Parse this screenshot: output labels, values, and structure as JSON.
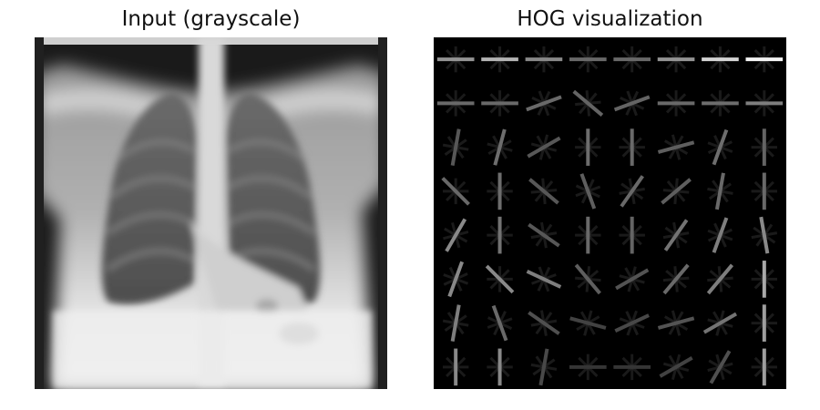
{
  "figure": {
    "left_title": "Input (grayscale)",
    "right_title": "HOG visualization"
  },
  "hog": {
    "grid": [
      8,
      8
    ],
    "cells": [
      [
        [
          0,
          0.5
        ],
        [
          0,
          0.65
        ],
        [
          0,
          0.45
        ],
        [
          0,
          0.3
        ],
        [
          0,
          0.3
        ],
        [
          0,
          0.5
        ],
        [
          0,
          0.8
        ],
        [
          0,
          0.95
        ]
      ],
      [
        [
          0,
          0.3
        ],
        [
          0,
          0.3
        ],
        [
          20,
          0.3
        ],
        [
          -40,
          0.28
        ],
        [
          20,
          0.28
        ],
        [
          0,
          0.3
        ],
        [
          0,
          0.32
        ],
        [
          0,
          0.4
        ]
      ],
      [
        [
          80,
          0.22
        ],
        [
          75,
          0.32
        ],
        [
          30,
          0.22
        ],
        [
          90,
          0.32
        ],
        [
          90,
          0.3
        ],
        [
          15,
          0.25
        ],
        [
          70,
          0.32
        ],
        [
          90,
          0.28
        ]
      ],
      [
        [
          -45,
          0.3
        ],
        [
          90,
          0.32
        ],
        [
          -40,
          0.22
        ],
        [
          -70,
          0.25
        ],
        [
          55,
          0.3
        ],
        [
          40,
          0.25
        ],
        [
          80,
          0.3
        ],
        [
          90,
          0.3
        ]
      ],
      [
        [
          60,
          0.45
        ],
        [
          90,
          0.35
        ],
        [
          -35,
          0.22
        ],
        [
          90,
          0.3
        ],
        [
          90,
          0.28
        ],
        [
          55,
          0.35
        ],
        [
          70,
          0.4
        ],
        [
          -80,
          0.45
        ]
      ],
      [
        [
          70,
          0.45
        ],
        [
          -45,
          0.45
        ],
        [
          -25,
          0.4
        ],
        [
          -50,
          0.25
        ],
        [
          30,
          0.2
        ],
        [
          50,
          0.3
        ],
        [
          50,
          0.4
        ],
        [
          90,
          0.6
        ]
      ],
      [
        [
          80,
          0.4
        ],
        [
          -70,
          0.3
        ],
        [
          -35,
          0.18
        ],
        [
          -15,
          0.12
        ],
        [
          25,
          0.15
        ],
        [
          15,
          0.2
        ],
        [
          30,
          0.35
        ],
        [
          90,
          0.55
        ]
      ],
      [
        [
          90,
          0.45
        ],
        [
          90,
          0.45
        ],
        [
          80,
          0.15
        ],
        [
          0,
          0.06
        ],
        [
          0,
          0.06
        ],
        [
          30,
          0.12
        ],
        [
          60,
          0.18
        ],
        [
          90,
          0.55
        ]
      ]
    ]
  }
}
